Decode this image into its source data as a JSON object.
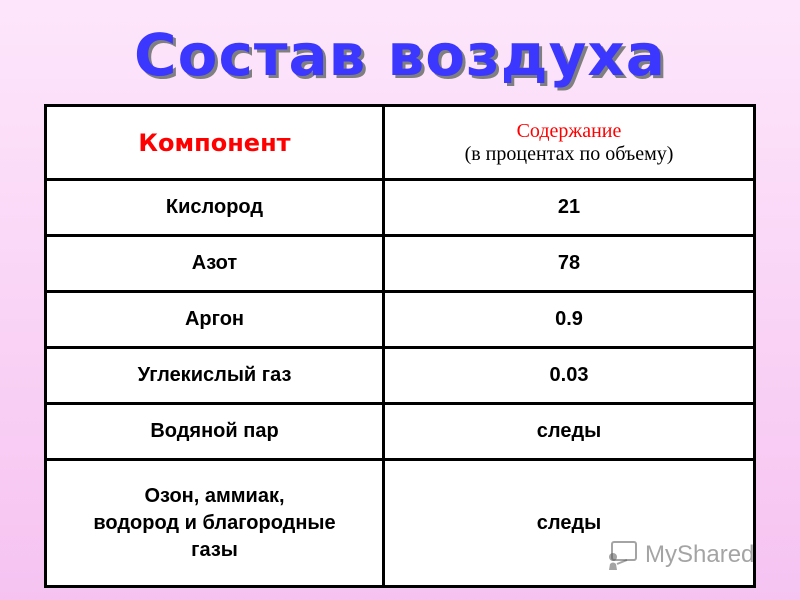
{
  "slide": {
    "title": "Состав воздуха"
  },
  "table": {
    "header": {
      "component": "Компонент",
      "content_line1": "Содержание",
      "content_line2": "(в процентах по объему)"
    },
    "rows": [
      {
        "name": "Кислород",
        "value": "21"
      },
      {
        "name": "Азот",
        "value": "78"
      },
      {
        "name": "Аргон",
        "value": "0.9"
      },
      {
        "name": "Углекислый газ",
        "value": "0.03"
      },
      {
        "name": "Водяной пар",
        "value": "следы"
      },
      {
        "name_lines": [
          "Озон, аммиак,",
          "водород и благородные",
          "газы"
        ],
        "value": "следы"
      }
    ]
  },
  "watermark": {
    "text": "MyShared"
  },
  "colors": {
    "title": "#3b37ff",
    "header_accent": "#ff0000",
    "background_top": "#fde6fb",
    "background_bottom": "#f6c3f1"
  },
  "icons": {
    "watermark_icon": "chalkboard-person-icon"
  }
}
